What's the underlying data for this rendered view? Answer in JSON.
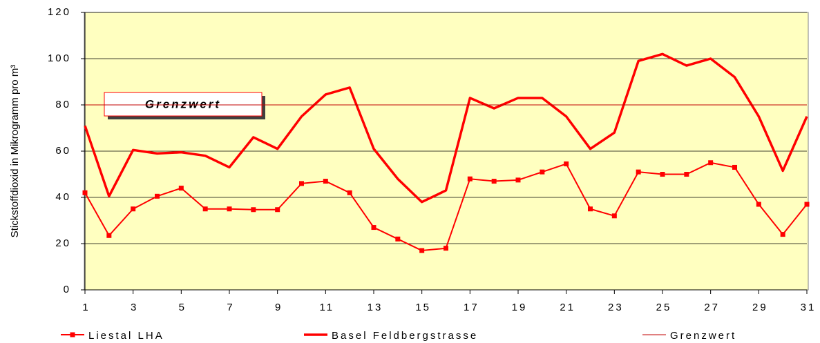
{
  "chart_data": {
    "type": "line",
    "y_label": "Stickstoffdioxid in Mikrogramm pro m³",
    "annotation": "Grenzwert",
    "x": [
      1,
      2,
      3,
      4,
      5,
      6,
      7,
      8,
      9,
      10,
      11,
      12,
      13,
      14,
      15,
      16,
      17,
      18,
      19,
      20,
      21,
      22,
      23,
      24,
      25,
      26,
      27,
      28,
      29,
      30,
      31
    ],
    "xlim": [
      1,
      31
    ],
    "xticks": [
      1,
      3,
      5,
      7,
      9,
      11,
      13,
      15,
      17,
      19,
      21,
      23,
      25,
      27,
      29,
      31
    ],
    "ylim": [
      0,
      120
    ],
    "yticks": [
      0,
      20,
      40,
      60,
      80,
      100,
      120
    ],
    "grid": true,
    "legend": "bottom",
    "series": [
      {
        "name": "Liestal LHA",
        "color": "#ff0000",
        "marker": "square",
        "values": [
          42,
          23.5,
          35,
          40.5,
          44,
          35,
          35,
          34.7,
          34.7,
          46,
          47,
          42,
          27,
          22,
          17,
          18,
          48,
          47,
          47.5,
          51,
          54.5,
          35,
          32,
          51,
          50,
          50,
          55,
          53,
          37,
          24,
          37
        ]
      },
      {
        "name": "Basel Feldbergstrasse",
        "color": "#ff0000",
        "values": [
          71,
          40.5,
          60.5,
          59,
          59.5,
          58,
          53,
          66,
          61,
          75,
          84.5,
          87.5,
          61,
          48,
          38,
          43,
          83,
          78.5,
          83,
          83,
          75,
          61,
          68,
          99,
          102,
          97,
          100,
          92,
          75,
          51.5,
          75
        ]
      },
      {
        "name": "Grenzwert",
        "color": "#c00000",
        "values": [
          80,
          80,
          80,
          80,
          80,
          80,
          80,
          80,
          80,
          80,
          80,
          80,
          80,
          80,
          80,
          80,
          80,
          80,
          80,
          80,
          80,
          80,
          80,
          80,
          80,
          80,
          80,
          80,
          80,
          80,
          80
        ]
      }
    ]
  }
}
